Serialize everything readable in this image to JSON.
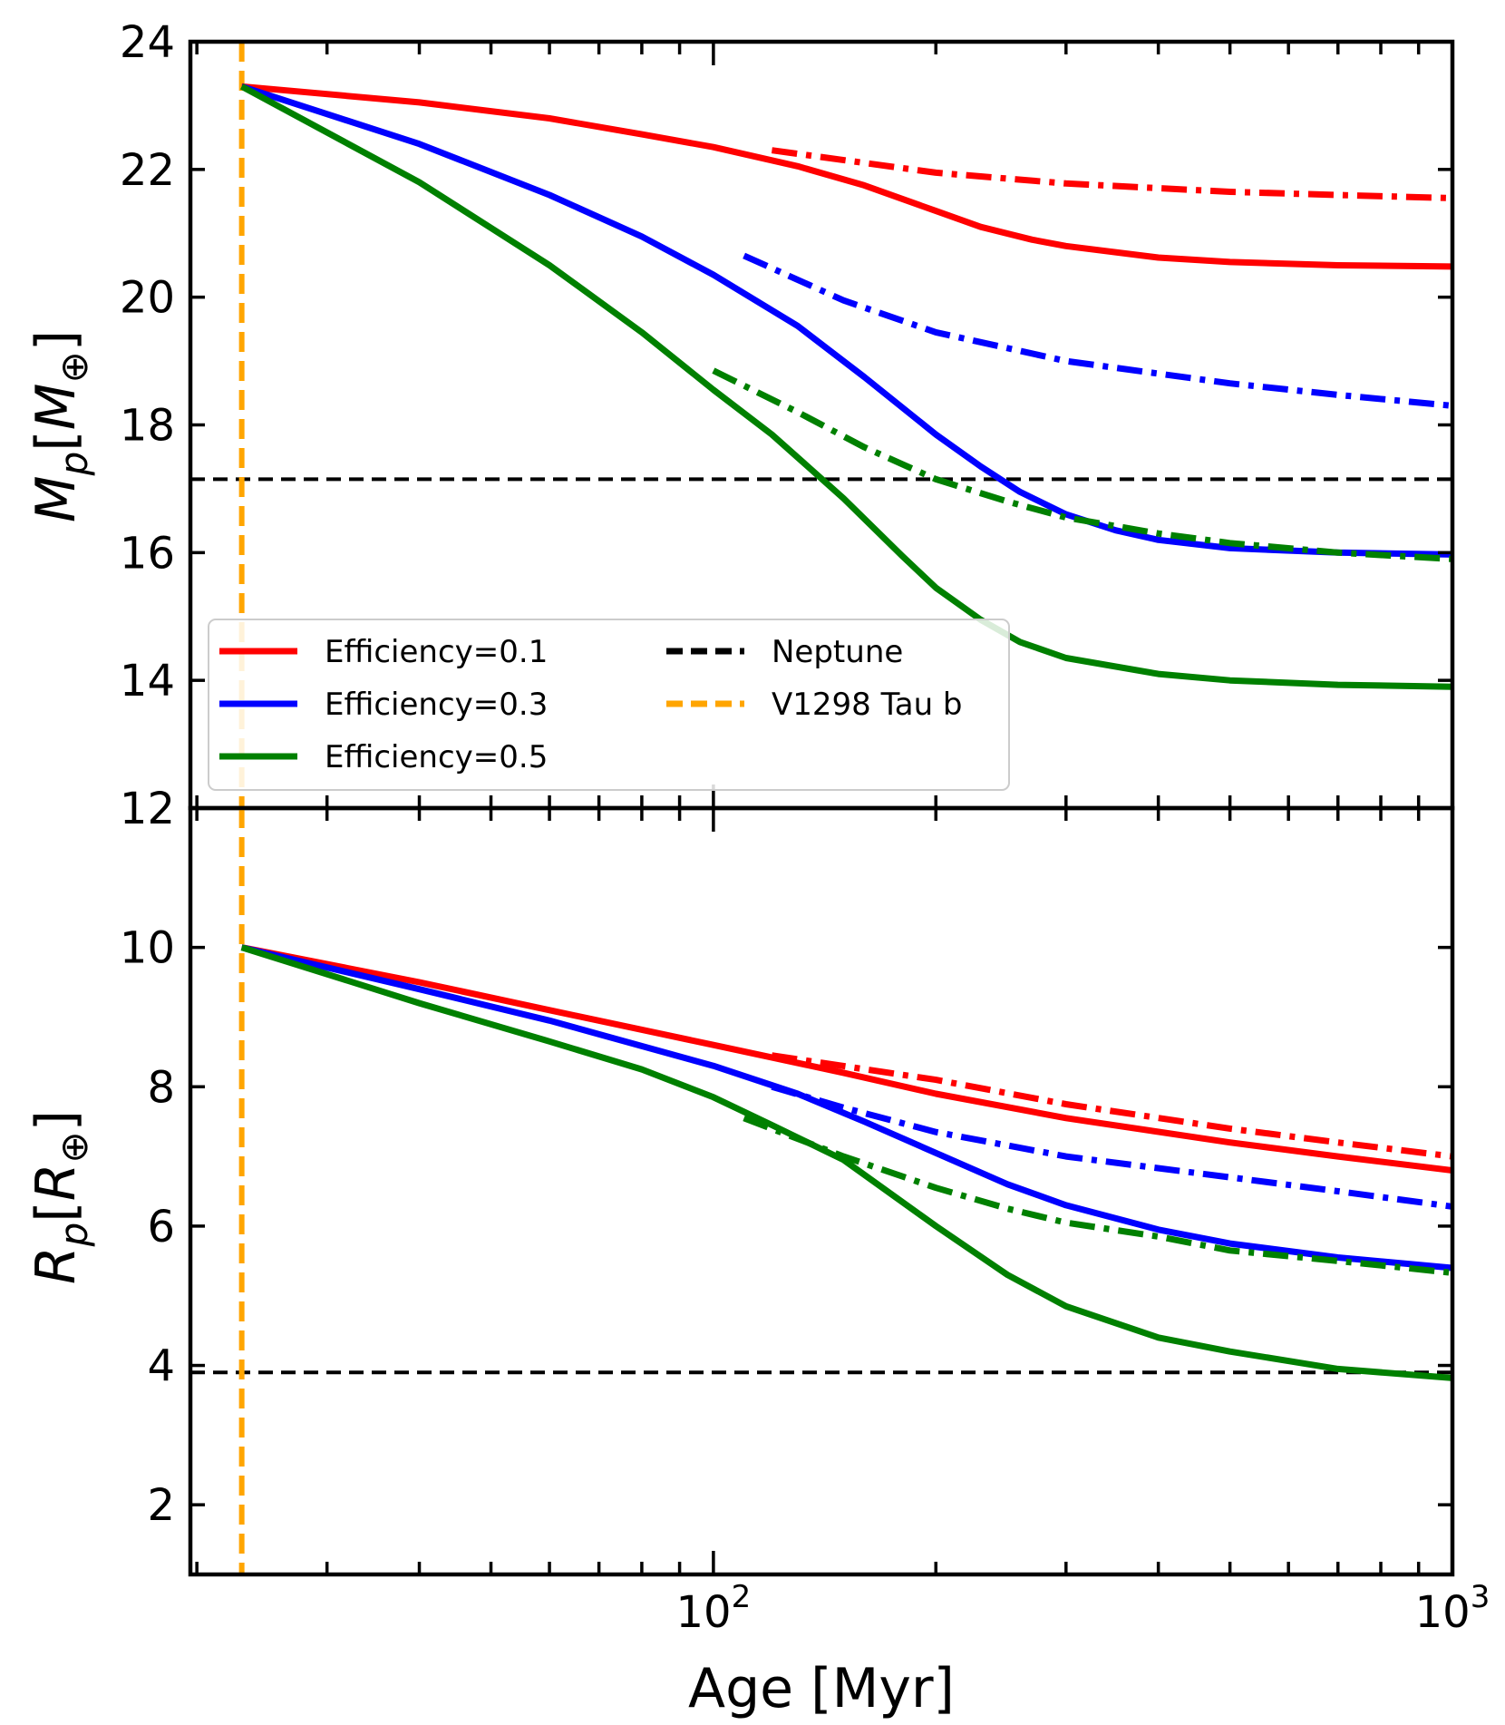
{
  "figure": {
    "xlabel": "Age [Myr]",
    "x_tick_labels": [
      {
        "value": 100,
        "base": "10",
        "exp": "2"
      },
      {
        "value": 1000,
        "base": "10",
        "exp": "3"
      }
    ]
  },
  "chart_data": [
    {
      "type": "line",
      "panel": "top",
      "ylabel_main": "M",
      "ylabel_sub": "p",
      "ylabel_bracket_main": "M",
      "ylabel_bracket_sub": "⊕",
      "xscale": "log",
      "xlim": [
        19.6,
        1000
      ],
      "ylim": [
        12,
        24
      ],
      "yticks": [
        12,
        14,
        16,
        18,
        20,
        22,
        24
      ],
      "reference_lines": [
        {
          "name": "Neptune",
          "axis": "y",
          "value": 17.15,
          "color": "#000000",
          "style": "dashed"
        },
        {
          "name": "V1298 Tau b",
          "axis": "x",
          "value": 23,
          "color": "#FFA500",
          "style": "dashed"
        }
      ],
      "series": [
        {
          "name": "Efficiency=0.1",
          "color": "#FF0000",
          "style": "solid",
          "x": [
            23,
            40,
            60,
            80,
            100,
            130,
            160,
            200,
            230,
            270,
            300,
            400,
            500,
            700,
            1000
          ],
          "y": [
            23.3,
            23.05,
            22.8,
            22.55,
            22.35,
            22.05,
            21.75,
            21.35,
            21.1,
            20.9,
            20.8,
            20.62,
            20.55,
            20.5,
            20.48
          ]
        },
        {
          "name": "Efficiency=0.3",
          "color": "#0000FF",
          "style": "solid",
          "x": [
            23,
            40,
            60,
            80,
            100,
            130,
            160,
            200,
            230,
            260,
            300,
            350,
            400,
            500,
            700,
            1000
          ],
          "y": [
            23.3,
            22.4,
            21.6,
            20.95,
            20.35,
            19.55,
            18.75,
            17.85,
            17.35,
            16.95,
            16.6,
            16.35,
            16.2,
            16.07,
            16.0,
            15.97
          ]
        },
        {
          "name": "Efficiency=0.5",
          "color": "#008000",
          "style": "solid",
          "x": [
            23,
            40,
            60,
            80,
            100,
            120,
            150,
            180,
            200,
            230,
            260,
            300,
            400,
            500,
            700,
            1000
          ],
          "y": [
            23.3,
            21.8,
            20.5,
            19.45,
            18.55,
            17.85,
            16.85,
            15.95,
            15.45,
            14.95,
            14.6,
            14.35,
            14.1,
            14.0,
            13.93,
            13.9
          ]
        },
        {
          "name": "",
          "color": "#FF0000",
          "style": "dashdot",
          "x": [
            120,
            200,
            300,
            500,
            700,
            1000
          ],
          "y": [
            22.3,
            21.95,
            21.78,
            21.65,
            21.6,
            21.55
          ]
        },
        {
          "name": "",
          "color": "#0000FF",
          "style": "dashdot",
          "x": [
            110,
            150,
            200,
            300,
            500,
            700,
            1000
          ],
          "y": [
            20.65,
            19.95,
            19.45,
            19.0,
            18.65,
            18.47,
            18.3
          ]
        },
        {
          "name": "",
          "color": "#008000",
          "style": "dashdot",
          "x": [
            100,
            130,
            160,
            200,
            250,
            300,
            400,
            500,
            700,
            1000
          ],
          "y": [
            18.85,
            18.2,
            17.65,
            17.15,
            16.8,
            16.55,
            16.3,
            16.15,
            16.0,
            15.9
          ]
        }
      ],
      "legend": {
        "placement": "lower-left",
        "entries": [
          {
            "label": "Efficiency=0.1",
            "color": "#FF0000",
            "style": "solid"
          },
          {
            "label": "Efficiency=0.3",
            "color": "#0000FF",
            "style": "solid"
          },
          {
            "label": "Efficiency=0.5",
            "color": "#008000",
            "style": "solid"
          },
          {
            "label": "Neptune",
            "color": "#000000",
            "style": "dashed"
          },
          {
            "label": "V1298 Tau b",
            "color": "#FFA500",
            "style": "dashed"
          }
        ]
      }
    },
    {
      "type": "line",
      "panel": "bottom",
      "ylabel_main": "R",
      "ylabel_sub": "p",
      "ylabel_bracket_main": "R",
      "ylabel_bracket_sub": "⊕",
      "xscale": "log",
      "xlim": [
        19.6,
        1000
      ],
      "ylim": [
        1,
        12
      ],
      "yticks": [
        2,
        4,
        6,
        8,
        10
      ],
      "reference_lines": [
        {
          "name": "Neptune",
          "axis": "y",
          "value": 3.9,
          "color": "#000000",
          "style": "dashed"
        },
        {
          "name": "V1298 Tau b",
          "axis": "x",
          "value": 23,
          "color": "#FFA500",
          "style": "dashed"
        }
      ],
      "series": [
        {
          "name": "Efficiency=0.1",
          "color": "#FF0000",
          "style": "solid",
          "x": [
            23,
            40,
            60,
            100,
            150,
            200,
            300,
            500,
            700,
            1000
          ],
          "y": [
            10.0,
            9.5,
            9.1,
            8.6,
            8.2,
            7.9,
            7.55,
            7.2,
            7.0,
            6.8
          ]
        },
        {
          "name": "Efficiency=0.3",
          "color": "#0000FF",
          "style": "solid",
          "x": [
            23,
            40,
            60,
            100,
            130,
            160,
            200,
            250,
            300,
            400,
            500,
            700,
            1000
          ],
          "y": [
            10.0,
            9.4,
            8.95,
            8.3,
            7.9,
            7.5,
            7.05,
            6.6,
            6.3,
            5.95,
            5.75,
            5.55,
            5.4
          ]
        },
        {
          "name": "Efficiency=0.5",
          "color": "#008000",
          "style": "solid",
          "x": [
            23,
            40,
            60,
            80,
            100,
            120,
            150,
            200,
            250,
            300,
            400,
            500,
            700,
            1000
          ],
          "y": [
            10.0,
            9.2,
            8.65,
            8.25,
            7.85,
            7.45,
            6.95,
            6.0,
            5.3,
            4.85,
            4.4,
            4.2,
            3.95,
            3.82
          ]
        },
        {
          "name": "",
          "color": "#FF0000",
          "style": "dashdot",
          "x": [
            120,
            200,
            300,
            500,
            700,
            1000
          ],
          "y": [
            8.45,
            8.1,
            7.75,
            7.4,
            7.2,
            7.0
          ]
        },
        {
          "name": "",
          "color": "#0000FF",
          "style": "dashdot",
          "x": [
            120,
            150,
            200,
            300,
            500,
            700,
            1000
          ],
          "y": [
            8.0,
            7.7,
            7.35,
            7.0,
            6.7,
            6.5,
            6.28
          ]
        },
        {
          "name": "",
          "color": "#008000",
          "style": "dashdot",
          "x": [
            110,
            150,
            200,
            250,
            300,
            400,
            500,
            700,
            1000
          ],
          "y": [
            7.55,
            7.0,
            6.55,
            6.25,
            6.05,
            5.85,
            5.65,
            5.5,
            5.33
          ]
        }
      ]
    }
  ]
}
